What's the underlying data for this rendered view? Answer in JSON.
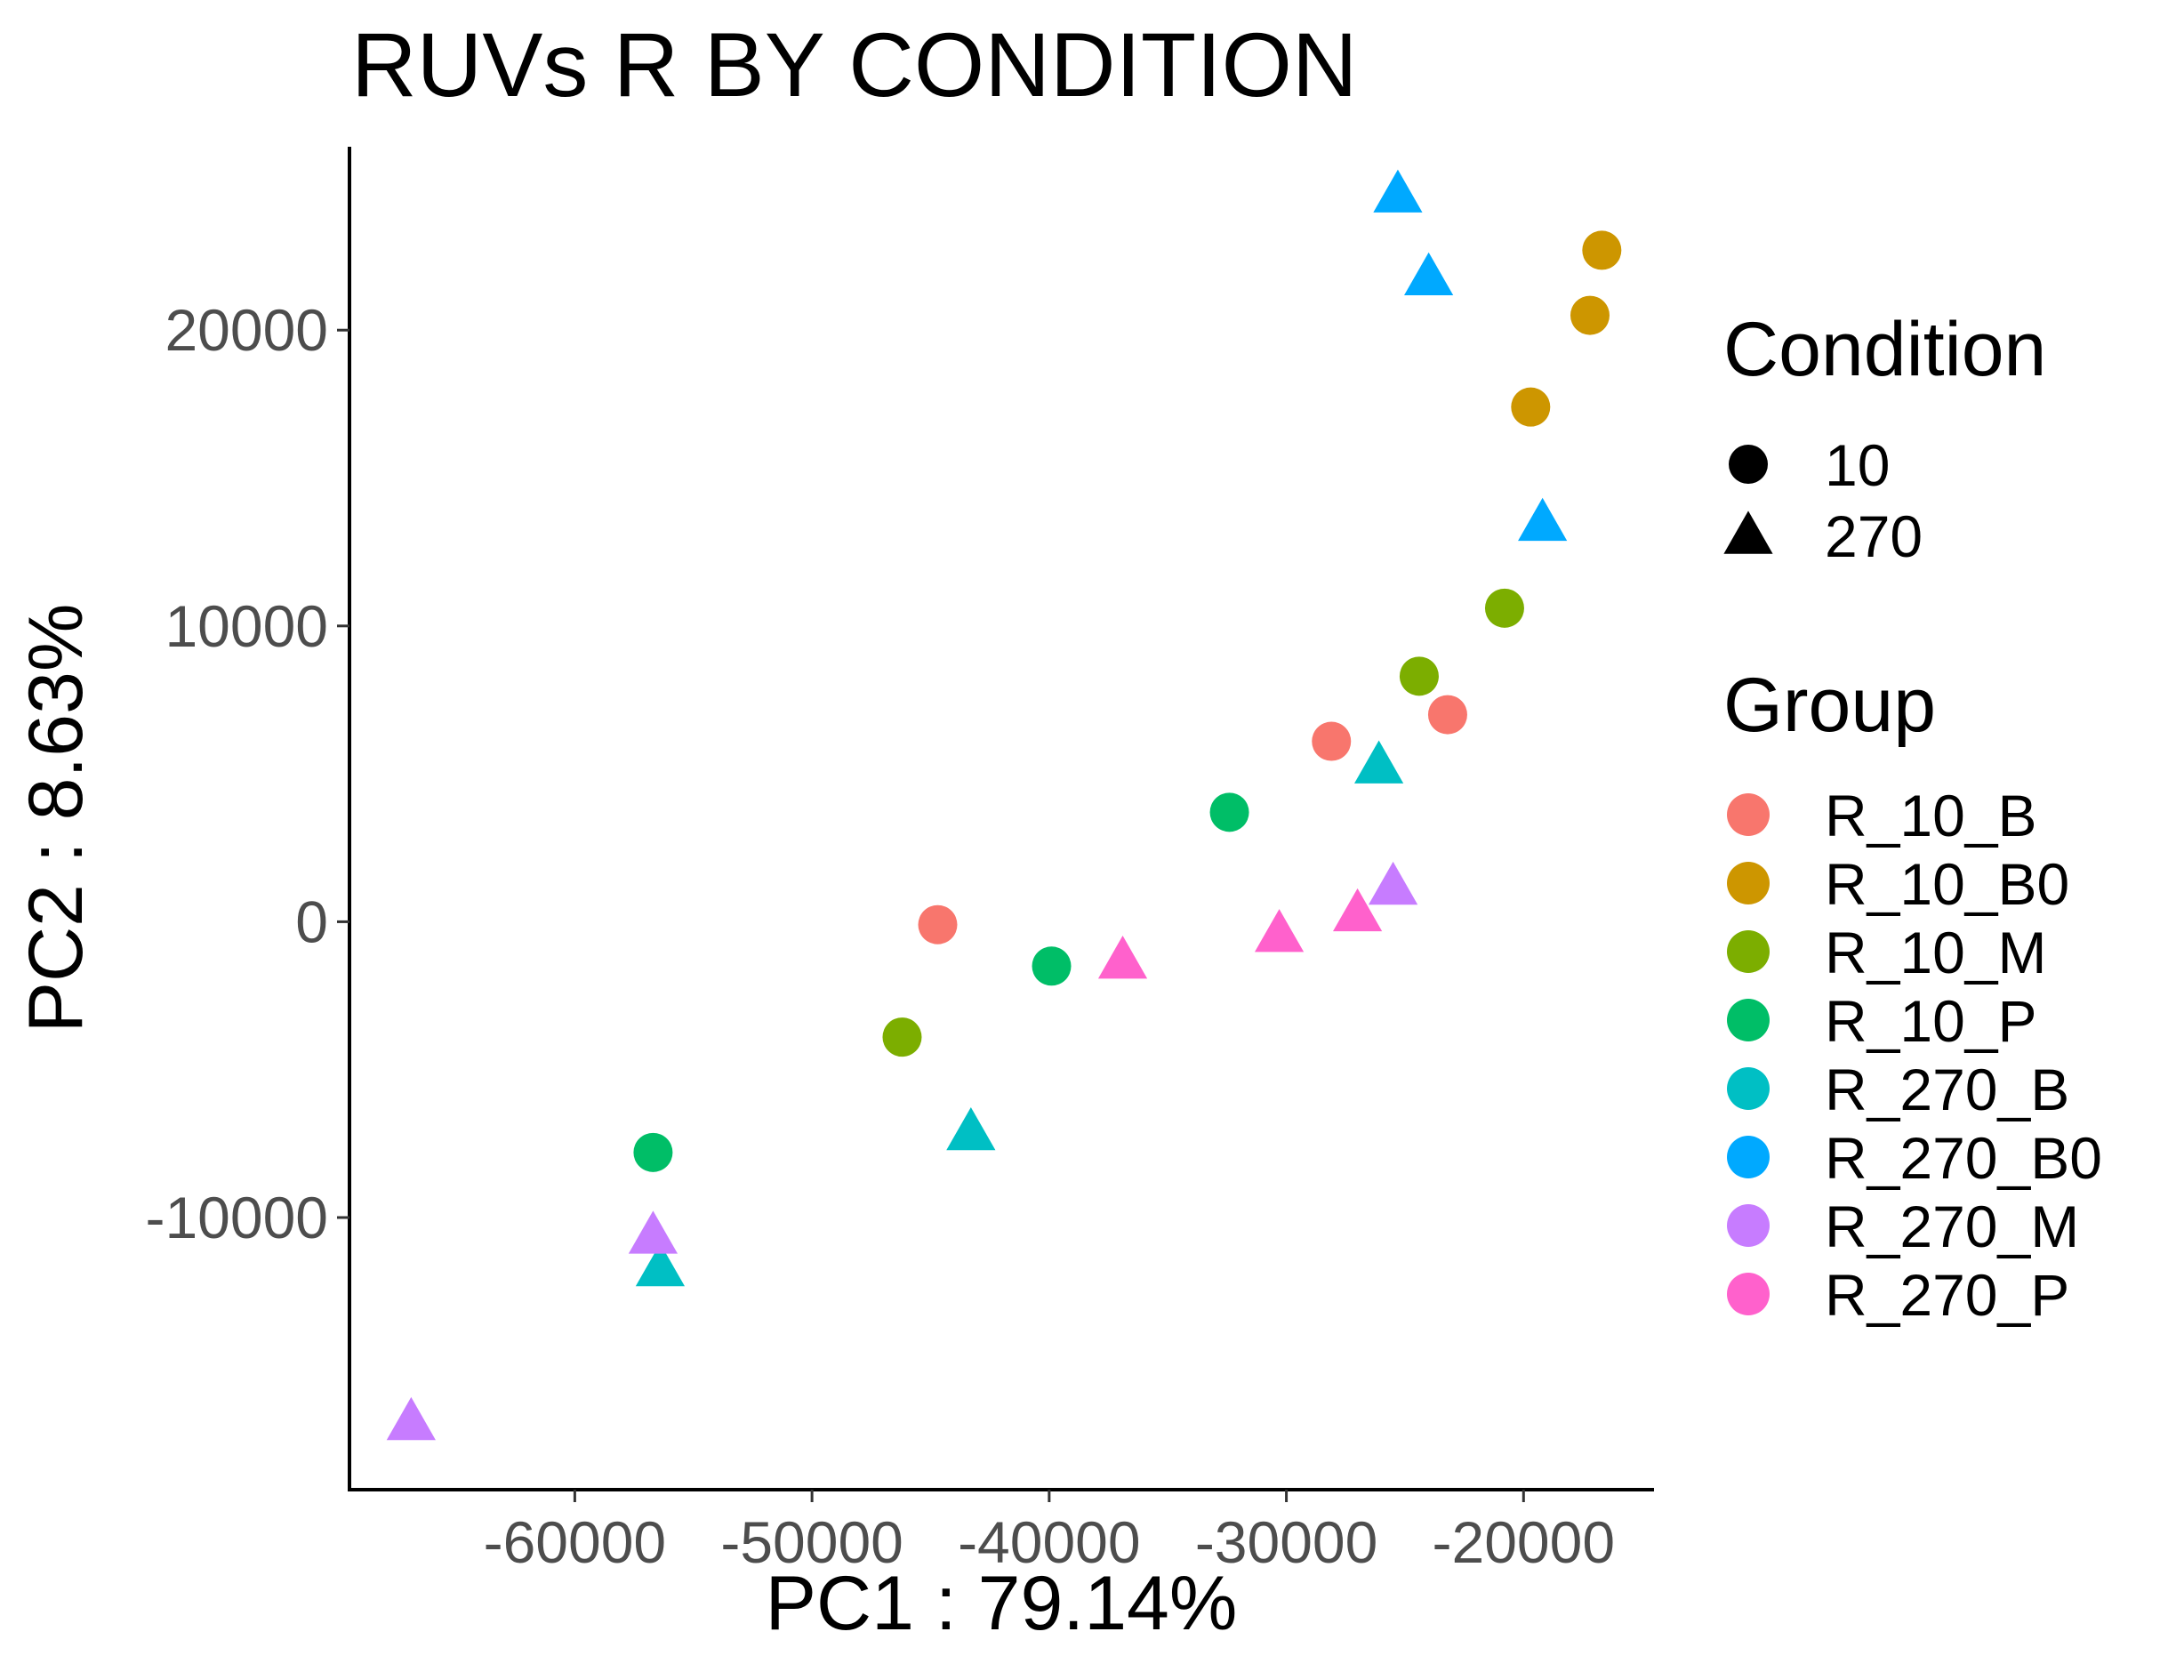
{
  "chart_data": {
    "type": "scatter",
    "title": "RUVs R BY CONDITION",
    "xlabel": "PC1 : 79.14%",
    "ylabel": "PC2 : 8.63%",
    "xlim": [
      -69500,
      -14500
    ],
    "ylim": [
      -19200,
      26200
    ],
    "xticks": [
      -60000,
      -50000,
      -40000,
      -30000,
      -20000
    ],
    "yticks": [
      -10000,
      0,
      10000,
      20000
    ],
    "grid": false,
    "legend_position": "right",
    "shape_legend": {
      "title": "Condition",
      "items": [
        {
          "label": "10",
          "shape": "circle"
        },
        {
          "label": "270",
          "shape": "triangle"
        }
      ]
    },
    "color_legend": {
      "title": "Group",
      "items": [
        {
          "label": "R_10_B",
          "color": "#F8766D"
        },
        {
          "label": "R_10_B0",
          "color": "#CD9600"
        },
        {
          "label": "R_10_M",
          "color": "#7CAE00"
        },
        {
          "label": "R_10_P",
          "color": "#00BE67"
        },
        {
          "label": "R_270_B",
          "color": "#00BFC4"
        },
        {
          "label": "R_270_B0",
          "color": "#00A9FF"
        },
        {
          "label": "R_270_M",
          "color": "#C77CFF"
        },
        {
          "label": "R_270_P",
          "color": "#FF61CC"
        }
      ]
    },
    "series": [
      {
        "name": "R_10_B",
        "shape": "circle",
        "color": "#F8766D",
        "points": [
          [
            -44700,
            -100
          ],
          [
            -28100,
            6100
          ],
          [
            -23200,
            7000
          ]
        ]
      },
      {
        "name": "R_10_B0",
        "shape": "circle",
        "color": "#CD9600",
        "points": [
          [
            -16700,
            22700
          ],
          [
            -17200,
            20500
          ],
          [
            -19700,
            17400
          ]
        ]
      },
      {
        "name": "R_10_M",
        "shape": "circle",
        "color": "#7CAE00",
        "points": [
          [
            -46200,
            -3900
          ],
          [
            -24400,
            8300
          ],
          [
            -20800,
            10600
          ]
        ]
      },
      {
        "name": "R_10_P",
        "shape": "circle",
        "color": "#00BE67",
        "points": [
          [
            -56700,
            -7800
          ],
          [
            -39900,
            -1500
          ],
          [
            -32400,
            3700
          ]
        ]
      },
      {
        "name": "R_270_B",
        "shape": "triangle",
        "color": "#00BFC4",
        "points": [
          [
            -56400,
            -11700
          ],
          [
            -43300,
            -7100
          ],
          [
            -26100,
            5300
          ]
        ]
      },
      {
        "name": "R_270_B0",
        "shape": "triangle",
        "color": "#00A9FF",
        "points": [
          [
            -25300,
            24600
          ],
          [
            -24000,
            21800
          ],
          [
            -19200,
            13500
          ]
        ]
      },
      {
        "name": "R_270_M",
        "shape": "triangle",
        "color": "#C77CFF",
        "points": [
          [
            -66900,
            -16900
          ],
          [
            -56700,
            -10600
          ],
          [
            -25500,
            1200
          ]
        ]
      },
      {
        "name": "R_270_P",
        "shape": "triangle",
        "color": "#FF61CC",
        "points": [
          [
            -36900,
            -1300
          ],
          [
            -30300,
            -400
          ],
          [
            -27000,
            300
          ]
        ]
      }
    ]
  }
}
